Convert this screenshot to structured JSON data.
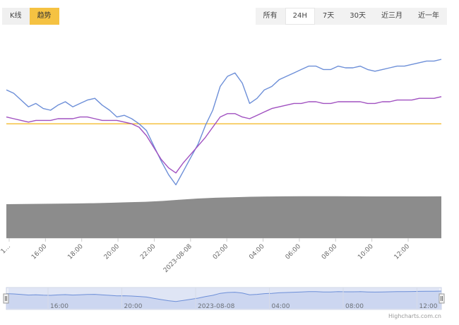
{
  "view_tabs": [
    {
      "label": "K线",
      "active": false
    },
    {
      "label": "趋势",
      "active": true
    }
  ],
  "range_buttons": [
    {
      "label": "所有",
      "active": false
    },
    {
      "label": "24H",
      "active": true
    },
    {
      "label": "7天",
      "active": false
    },
    {
      "label": "30天",
      "active": false
    },
    {
      "label": "近三月",
      "active": false
    },
    {
      "label": "近一年",
      "active": false
    }
  ],
  "credit": "Highcharts.com.cn",
  "colors": {
    "series_blue": "#6d8fd8",
    "series_purple": "#a050c0",
    "reference_line": "#f5c242",
    "volume_fill": "#8c8c8c",
    "navigator_fill": "#c5d0ee",
    "tab_active": "#f5c242"
  },
  "chart_data": {
    "type": "line",
    "x_tick_labels": [
      "1…",
      "16:00",
      "18:00",
      "20:00",
      "22:00",
      "2023-08-08",
      "02:00",
      "04:00",
      "06:00",
      "08:00",
      "10:00",
      "12:00"
    ],
    "series": [
      {
        "values": [
          72,
          70,
          66,
          62,
          64,
          61,
          60,
          63,
          65,
          62,
          64,
          66,
          67,
          63,
          60,
          56,
          57,
          55,
          52,
          48,
          39,
          30,
          22,
          16,
          24,
          32,
          40,
          51,
          60,
          74,
          80,
          82,
          76,
          64,
          67,
          72,
          74,
          78,
          80,
          82,
          84,
          86,
          86,
          84,
          84,
          86,
          85,
          85,
          86,
          84,
          83,
          84,
          85,
          86,
          86,
          87,
          88,
          89,
          89,
          90
        ]
      },
      {
        "values": [
          56,
          55,
          54,
          53,
          54,
          54,
          54,
          55,
          55,
          55,
          56,
          56,
          55,
          54,
          54,
          54,
          53,
          52,
          50,
          45,
          38,
          31,
          26,
          23,
          29,
          34,
          39,
          44,
          50,
          56,
          58,
          58,
          56,
          55,
          57,
          59,
          61,
          62,
          63,
          64,
          64,
          65,
          65,
          64,
          64,
          65,
          65,
          65,
          65,
          64,
          64,
          65,
          65,
          66,
          66,
          66,
          67,
          67,
          67,
          68
        ]
      },
      {
        "values": [
          52,
          52,
          52,
          52,
          52,
          52,
          52,
          52,
          52,
          52,
          52,
          52
        ]
      }
    ],
    "volume_values": [
      49.5,
      49.8,
      50.1,
      50.3,
      50.6,
      51.0,
      51.6,
      52.3,
      53.0,
      54.3,
      56.1,
      57.8,
      58.9,
      59.7,
      60.4,
      60.8,
      61.0,
      61.1,
      61.1,
      61.1,
      61.0,
      60.9,
      60.9,
      60.9,
      60.9,
      61.0
    ],
    "navigator_x_labels": [
      "16:00",
      "20:00",
      "2023-08-08",
      "04:00",
      "08:00",
      "12:00"
    ]
  }
}
